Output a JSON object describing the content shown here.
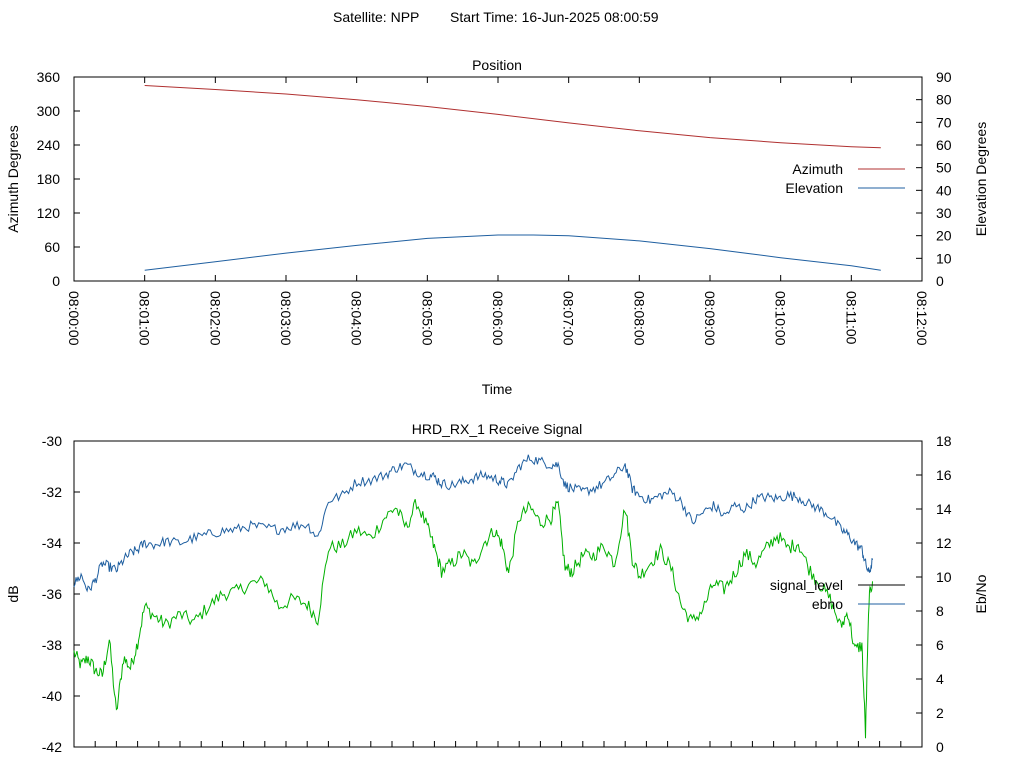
{
  "header": {
    "satellite": "Satellite: NPP",
    "start_time": "Start Time: 16-Jun-2025 08:00:59"
  },
  "colors": {
    "azimuth": "#b03030",
    "elevation": "#1f5fa0",
    "signal_level": "#000000",
    "ebno": "#1f5fa0",
    "signal_trace": "#00b000",
    "grid": "#000000"
  },
  "chart_data": [
    {
      "type": "line",
      "title": "Position",
      "xlabel": "Time",
      "ylabel": "Azimuth Degrees",
      "y2label": "Elevation Degrees",
      "x_ticks": [
        "08:00:00",
        "08:01:00",
        "08:02:00",
        "08:03:00",
        "08:04:00",
        "08:05:00",
        "08:06:00",
        "08:07:00",
        "08:08:00",
        "08:09:00",
        "08:10:00",
        "08:11:00",
        "08:12:00"
      ],
      "ylim": [
        0,
        360
      ],
      "y_ticks": [
        "0",
        "60",
        "120",
        "180",
        "240",
        "300",
        "360"
      ],
      "y2lim": [
        0,
        90
      ],
      "y2_ticks": [
        "0",
        "10",
        "20",
        "30",
        "40",
        "50",
        "60",
        "70",
        "80",
        "90"
      ],
      "legend_position": "right",
      "series": [
        {
          "name": "Azimuth",
          "axis": "left",
          "x": [
            "08:01:00",
            "08:02:00",
            "08:03:00",
            "08:04:00",
            "08:05:00",
            "08:06:00",
            "08:07:00",
            "08:08:00",
            "08:09:00",
            "08:10:00",
            "08:11:00",
            "08:11:25"
          ],
          "values": [
            345,
            338,
            330,
            320,
            308,
            294,
            279,
            265,
            253,
            244,
            237,
            235
          ]
        },
        {
          "name": "Elevation",
          "axis": "right",
          "x": [
            "08:01:00",
            "08:02:00",
            "08:03:00",
            "08:04:00",
            "08:05:00",
            "08:06:00",
            "08:06:30",
            "08:07:00",
            "08:08:00",
            "08:09:00",
            "08:10:00",
            "08:11:00",
            "08:11:25"
          ],
          "values": [
            4.7,
            8.5,
            12.3,
            15.7,
            18.8,
            20.3,
            20.3,
            20.0,
            17.7,
            14.3,
            10.3,
            6.7,
            4.7
          ]
        }
      ]
    },
    {
      "type": "line",
      "title": "HRD_RX_1 Receive Signal",
      "ylabel": "dB",
      "y2label": "Eb/No",
      "ylim": [
        -42,
        -30
      ],
      "y_ticks": [
        "-42",
        "-40",
        "-38",
        "-36",
        "-34",
        "-32",
        "-30"
      ],
      "y2lim": [
        0,
        18
      ],
      "y2_ticks": [
        "0",
        "2",
        "4",
        "6",
        "8",
        "10",
        "12",
        "14",
        "16",
        "18"
      ],
      "legend_position": "right",
      "series": [
        {
          "name": "signal_level",
          "axis": "left",
          "x_minutes": [
            0.0,
            0.1,
            0.2,
            0.3,
            0.4,
            0.5,
            0.6,
            0.7,
            0.8,
            0.9,
            1.0,
            1.15,
            1.3,
            1.5,
            1.7,
            1.9,
            2.1,
            2.3,
            2.5,
            2.7,
            2.9,
            3.1,
            3.3,
            3.45,
            3.6,
            3.8,
            4.0,
            4.2,
            4.4,
            4.55,
            4.7,
            4.85,
            5.0,
            5.1,
            5.2,
            5.35,
            5.5,
            5.65,
            5.8,
            5.95,
            6.05,
            6.15,
            6.3,
            6.45,
            6.6,
            6.75,
            6.85,
            6.95,
            7.05,
            7.2,
            7.35,
            7.5,
            7.65,
            7.8,
            7.9,
            8.0,
            8.15,
            8.3,
            8.45,
            8.6,
            8.75,
            8.9,
            9.05,
            9.2,
            9.35,
            9.5,
            9.65,
            9.8,
            9.95,
            10.1,
            10.25,
            10.4,
            10.55,
            10.7,
            10.85,
            10.95,
            11.05,
            11.15,
            11.2,
            11.25,
            11.3
          ],
          "values": [
            -38.3,
            -38.8,
            -38.5,
            -39.0,
            -39.2,
            -37.8,
            -40.7,
            -38.5,
            -38.9,
            -37.9,
            -36.5,
            -36.9,
            -37.2,
            -36.8,
            -37.1,
            -36.5,
            -36.0,
            -35.9,
            -35.6,
            -35.5,
            -36.5,
            -36.2,
            -36.4,
            -37.0,
            -34.2,
            -34.1,
            -33.5,
            -33.8,
            -33.0,
            -32.6,
            -33.4,
            -32.4,
            -33.4,
            -34.2,
            -35.1,
            -34.8,
            -34.4,
            -34.9,
            -34.0,
            -33.5,
            -34.0,
            -35.2,
            -33.0,
            -32.6,
            -33.2,
            -33.0,
            -32.5,
            -35.0,
            -35.1,
            -34.5,
            -34.5,
            -34.1,
            -34.8,
            -32.6,
            -34.6,
            -35.3,
            -34.8,
            -34.3,
            -35.0,
            -36.5,
            -37.1,
            -36.6,
            -35.6,
            -35.8,
            -35.2,
            -34.4,
            -34.8,
            -34.2,
            -33.7,
            -34.2,
            -34.0,
            -35.0,
            -35.6,
            -36.2,
            -37.3,
            -36.7,
            -38.2,
            -38.0,
            -41.5,
            -36.2,
            -35.5
          ]
        },
        {
          "name": "ebno",
          "axis": "right",
          "x_minutes": [
            0.0,
            0.1,
            0.2,
            0.3,
            0.4,
            0.5,
            0.6,
            0.7,
            0.8,
            0.9,
            1.0,
            1.15,
            1.3,
            1.5,
            1.7,
            1.9,
            2.1,
            2.3,
            2.5,
            2.7,
            2.9,
            3.1,
            3.3,
            3.45,
            3.6,
            3.8,
            4.0,
            4.2,
            4.4,
            4.55,
            4.7,
            4.85,
            5.0,
            5.1,
            5.2,
            5.35,
            5.5,
            5.65,
            5.8,
            5.95,
            6.05,
            6.15,
            6.3,
            6.45,
            6.6,
            6.75,
            6.85,
            6.95,
            7.05,
            7.2,
            7.35,
            7.5,
            7.65,
            7.8,
            7.9,
            8.0,
            8.15,
            8.3,
            8.45,
            8.6,
            8.75,
            8.9,
            9.05,
            9.2,
            9.35,
            9.5,
            9.65,
            9.8,
            9.95,
            10.1,
            10.25,
            10.4,
            10.55,
            10.7,
            10.85,
            10.95,
            11.05,
            11.15,
            11.2,
            11.25,
            11.3
          ],
          "values": [
            9.6,
            10.1,
            9.2,
            9.8,
            10.8,
            10.6,
            10.4,
            11.0,
            11.4,
            11.6,
            12.0,
            11.9,
            12.1,
            12.0,
            12.3,
            12.5,
            12.7,
            12.8,
            13.0,
            12.9,
            12.8,
            13.0,
            13.1,
            12.3,
            14.5,
            14.8,
            15.6,
            15.7,
            16.0,
            16.4,
            16.6,
            16.2,
            16.0,
            15.9,
            15.5,
            15.4,
            15.6,
            15.8,
            16.0,
            15.8,
            15.6,
            15.4,
            16.5,
            17.0,
            16.8,
            16.6,
            16.6,
            15.4,
            15.2,
            15.0,
            15.2,
            15.5,
            16.0,
            16.6,
            15.2,
            14.8,
            14.5,
            14.8,
            15.0,
            14.4,
            13.2,
            13.8,
            14.2,
            13.6,
            14.2,
            14.0,
            14.6,
            14.7,
            14.6,
            14.8,
            14.7,
            14.3,
            14.0,
            13.6,
            12.8,
            12.5,
            12.0,
            11.6,
            10.8,
            10.2,
            11.0
          ]
        }
      ]
    }
  ]
}
